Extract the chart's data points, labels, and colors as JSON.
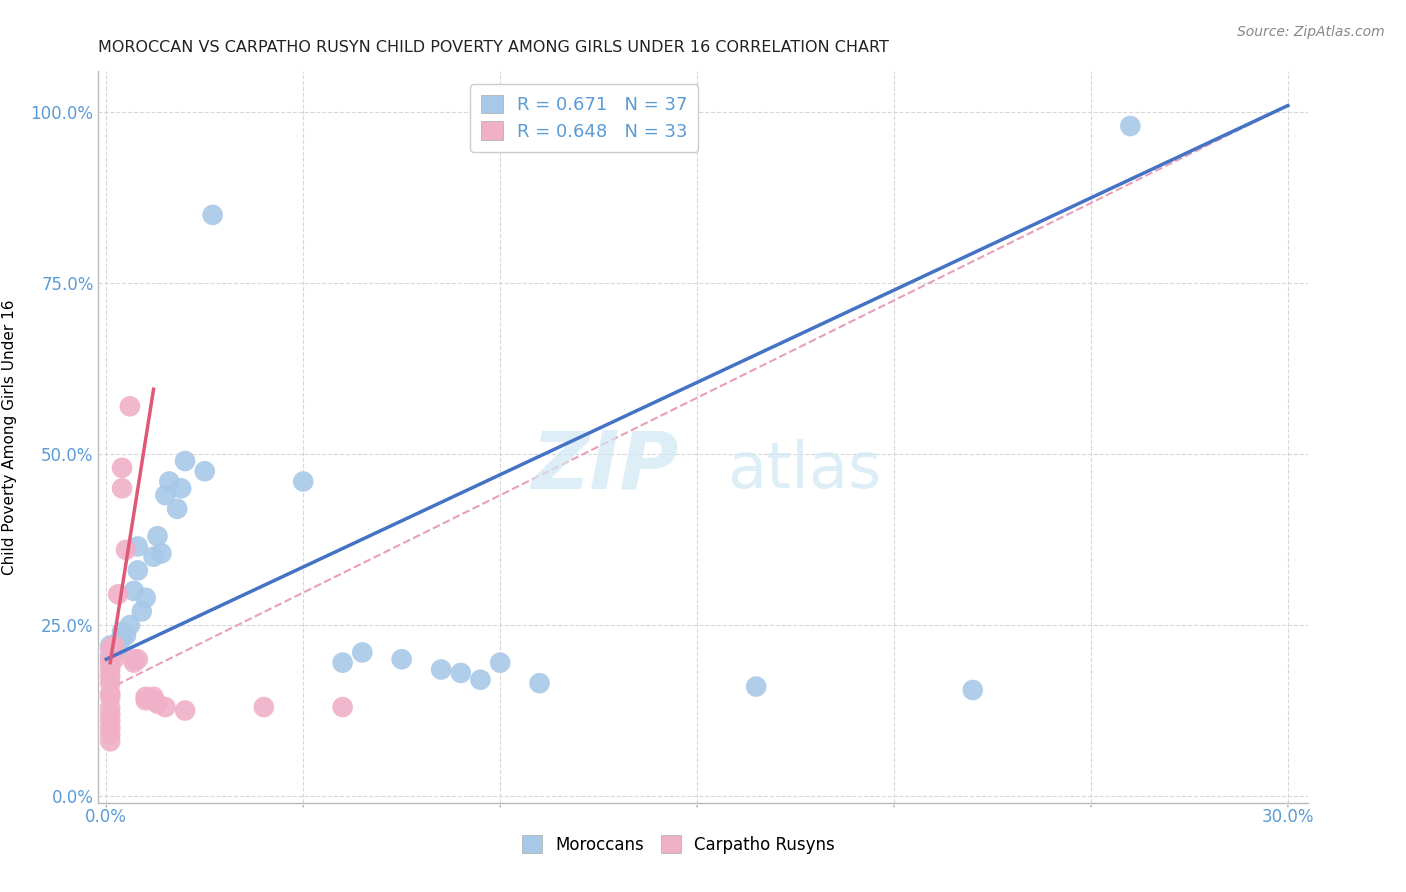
{
  "title": "MOROCCAN VS CARPATHO RUSYN CHILD POVERTY AMONG GIRLS UNDER 16 CORRELATION CHART",
  "source": "Source: ZipAtlas.com",
  "ylabel": "Child Poverty Among Girls Under 16",
  "xlabel_vals": [
    0.0,
    0.05,
    0.1,
    0.15,
    0.2,
    0.25,
    0.3
  ],
  "ylabel_vals": [
    0.0,
    0.25,
    0.5,
    0.75,
    1.0
  ],
  "xlim": [
    -0.002,
    0.305
  ],
  "ylim": [
    -0.01,
    1.06
  ],
  "moroccan_r": 0.671,
  "moroccan_n": 37,
  "rusyn_r": 0.648,
  "rusyn_n": 33,
  "moroccan_color": "#a8c8e8",
  "rusyn_color": "#f0b0c8",
  "moroccan_line_color": "#4472c4",
  "rusyn_line_color": "#e05878",
  "rusyn_dashed_color": "#e8a0b8",
  "moroccan_scatter": [
    [
      0.001,
      0.205
    ],
    [
      0.002,
      0.215
    ],
    [
      0.001,
      0.22
    ],
    [
      0.002,
      0.21
    ],
    [
      0.003,
      0.225
    ],
    [
      0.004,
      0.23
    ],
    [
      0.003,
      0.215
    ],
    [
      0.005,
      0.235
    ],
    [
      0.004,
      0.24
    ],
    [
      0.006,
      0.25
    ],
    [
      0.007,
      0.3
    ],
    [
      0.008,
      0.33
    ],
    [
      0.008,
      0.365
    ],
    [
      0.009,
      0.27
    ],
    [
      0.01,
      0.29
    ],
    [
      0.012,
      0.35
    ],
    [
      0.013,
      0.38
    ],
    [
      0.014,
      0.355
    ],
    [
      0.015,
      0.44
    ],
    [
      0.016,
      0.46
    ],
    [
      0.018,
      0.42
    ],
    [
      0.019,
      0.45
    ],
    [
      0.02,
      0.49
    ],
    [
      0.025,
      0.475
    ],
    [
      0.027,
      0.85
    ],
    [
      0.05,
      0.46
    ],
    [
      0.06,
      0.195
    ],
    [
      0.065,
      0.21
    ],
    [
      0.075,
      0.2
    ],
    [
      0.085,
      0.185
    ],
    [
      0.09,
      0.18
    ],
    [
      0.095,
      0.17
    ],
    [
      0.1,
      0.195
    ],
    [
      0.11,
      0.165
    ],
    [
      0.165,
      0.16
    ],
    [
      0.22,
      0.155
    ],
    [
      0.26,
      0.98
    ]
  ],
  "rusyn_scatter": [
    [
      0.001,
      0.215
    ],
    [
      0.001,
      0.2
    ],
    [
      0.001,
      0.195
    ],
    [
      0.001,
      0.185
    ],
    [
      0.001,
      0.175
    ],
    [
      0.001,
      0.165
    ],
    [
      0.001,
      0.15
    ],
    [
      0.001,
      0.145
    ],
    [
      0.001,
      0.13
    ],
    [
      0.001,
      0.12
    ],
    [
      0.001,
      0.11
    ],
    [
      0.001,
      0.1
    ],
    [
      0.001,
      0.09
    ],
    [
      0.001,
      0.08
    ],
    [
      0.002,
      0.22
    ],
    [
      0.002,
      0.2
    ],
    [
      0.003,
      0.295
    ],
    [
      0.004,
      0.45
    ],
    [
      0.004,
      0.48
    ],
    [
      0.005,
      0.36
    ],
    [
      0.006,
      0.57
    ],
    [
      0.007,
      0.2
    ],
    [
      0.007,
      0.195
    ],
    [
      0.008,
      0.2
    ],
    [
      0.01,
      0.145
    ],
    [
      0.01,
      0.14
    ],
    [
      0.012,
      0.145
    ],
    [
      0.012,
      0.14
    ],
    [
      0.013,
      0.135
    ],
    [
      0.015,
      0.13
    ],
    [
      0.02,
      0.125
    ],
    [
      0.04,
      0.13
    ],
    [
      0.06,
      0.13
    ]
  ],
  "moroccan_trendline": [
    [
      0.0,
      0.2
    ],
    [
      0.3,
      1.01
    ]
  ],
  "rusyn_trendline_solid": [
    [
      0.001,
      0.195
    ],
    [
      0.012,
      0.595
    ]
  ],
  "rusyn_trendline_dashed": [
    [
      0.0,
      0.155
    ],
    [
      0.3,
      1.01
    ]
  ],
  "watermark_zip": "ZIP",
  "watermark_atlas": "atlas",
  "background_color": "#ffffff",
  "grid_color": "#d8d8d8",
  "title_color": "#222222",
  "axis_label_color": "#5b9bd5",
  "legend_label_color": "#5b9bd5"
}
